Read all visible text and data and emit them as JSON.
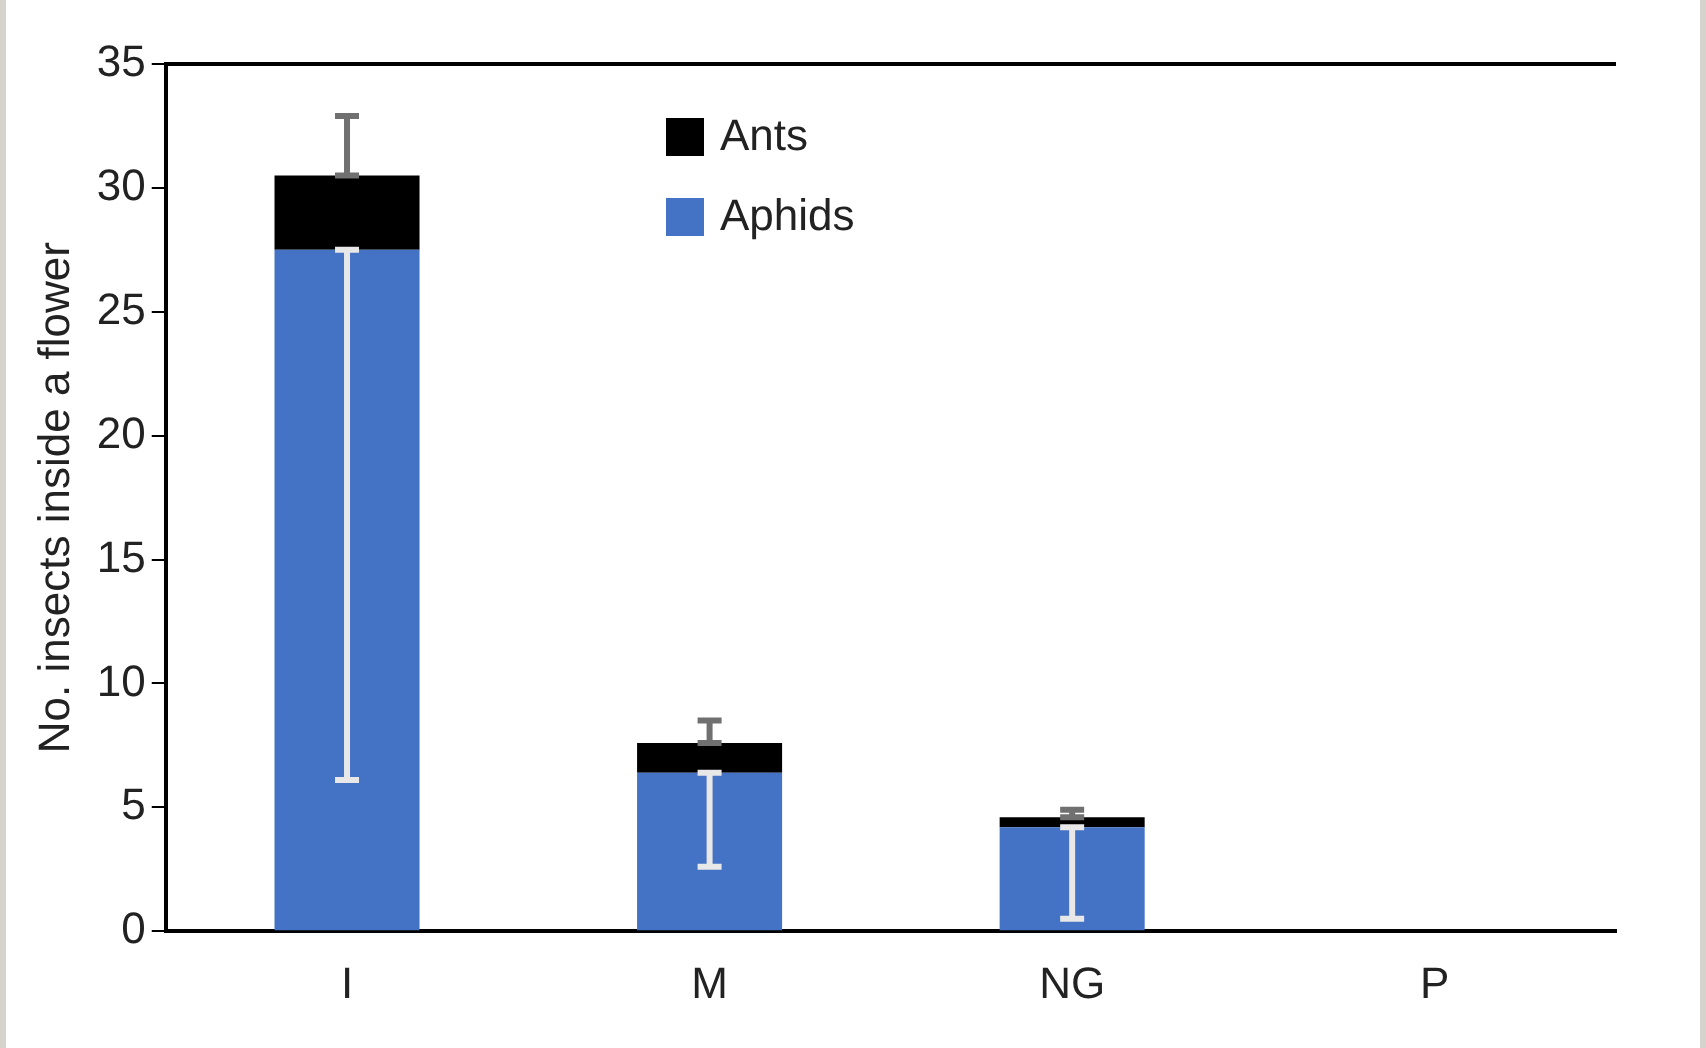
{
  "chart_data": {
    "type": "bar",
    "ylabel": "No. insects inside a flower",
    "categories": [
      "I",
      "M",
      "NG",
      "P"
    ],
    "stacked": true,
    "ylim": [
      0,
      35
    ],
    "yticks": [
      0,
      5,
      10,
      15,
      20,
      25,
      30,
      35
    ],
    "grid": false,
    "legend": "top",
    "series": [
      {
        "name": "Aphids",
        "color": "#4472c4",
        "values": [
          27.5,
          6.4,
          4.2,
          0
        ],
        "errors": [
          [
            6.1,
            27.5
          ],
          [
            2.6,
            6.4
          ],
          [
            0.5,
            4.2
          ],
          null
        ]
      },
      {
        "name": "Ants",
        "color": "#000000",
        "values": [
          3.0,
          1.2,
          0.4,
          0
        ],
        "errors": [
          [
            30.5,
            32.9
          ],
          [
            7.6,
            8.5
          ],
          [
            4.6,
            4.9
          ],
          null
        ]
      }
    ]
  }
}
